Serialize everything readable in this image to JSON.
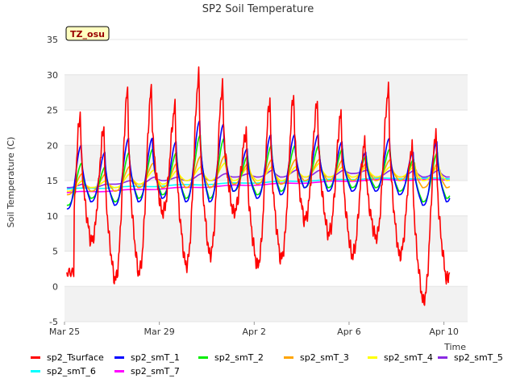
{
  "chart_data": {
    "type": "line",
    "title": "SP2 Soil Temperature",
    "ylabel": "Soil Temperature (C)",
    "xlabel": "Time",
    "badge": "TZ_osu",
    "ylim": [
      -5,
      35
    ],
    "yticks": [
      -5,
      0,
      5,
      10,
      15,
      20,
      25,
      30,
      35
    ],
    "xlim_days": [
      0,
      17.0
    ],
    "xticks": [
      {
        "label": "Mar 25",
        "day": 0
      },
      {
        "label": "Mar 29",
        "day": 4
      },
      {
        "label": "Apr 2",
        "day": 8
      },
      {
        "label": "Apr 6",
        "day": 12
      },
      {
        "label": "Apr 10",
        "day": 16
      }
    ],
    "grid": "horizontal-bands",
    "series": [
      {
        "name": "sp2_Tsurface",
        "color": "#ff0000",
        "daily_max": [
          24.5,
          22.5,
          28.0,
          28.0,
          25.5,
          30.0,
          28.5,
          22.0,
          26.5,
          27.0,
          26.0,
          24.5,
          20.5,
          28.0,
          20.0,
          22.0,
          26.5
        ],
        "daily_min": [
          0.2,
          6.5,
          1.0,
          2.0,
          10.5,
          3.0,
          4.5,
          10.5,
          3.0,
          4.0,
          9.5,
          7.5,
          4.5,
          7.0,
          4.5,
          -2.0,
          1.0
        ],
        "start": 2.0,
        "end": 10.5
      },
      {
        "name": "sp2_smT_1",
        "color": "#0000ff",
        "daily_max": [
          20.0,
          19.0,
          21.0,
          21.0,
          20.5,
          23.5,
          23.0,
          19.5,
          21.5,
          21.5,
          21.5,
          20.5,
          19.0,
          21.0,
          19.0,
          20.5,
          22.5
        ],
        "daily_min": [
          11.0,
          12.0,
          11.5,
          12.0,
          12.5,
          12.0,
          12.0,
          13.5,
          12.5,
          13.0,
          14.0,
          13.5,
          13.5,
          13.5,
          13.0,
          11.5,
          12.0
        ]
      },
      {
        "name": "sp2_smT_2",
        "color": "#00ee00",
        "daily_max": [
          17.5,
          17.0,
          19.0,
          19.5,
          19.0,
          21.5,
          21.0,
          18.5,
          20.0,
          20.0,
          20.0,
          19.5,
          18.5,
          19.5,
          18.0,
          19.0,
          21.0
        ],
        "daily_min": [
          11.5,
          12.5,
          12.0,
          12.5,
          13.0,
          12.5,
          12.5,
          13.5,
          13.0,
          13.5,
          14.0,
          14.0,
          14.0,
          14.0,
          13.5,
          12.0,
          12.5
        ]
      },
      {
        "name": "sp2_smT_3",
        "color": "#ffa500",
        "daily_max": [
          16.0,
          16.0,
          17.0,
          17.5,
          17.5,
          18.5,
          18.5,
          17.5,
          18.0,
          18.0,
          18.0,
          18.0,
          17.5,
          18.0,
          17.5,
          17.5,
          18.5
        ],
        "daily_min": [
          13.0,
          13.5,
          13.5,
          14.0,
          14.0,
          14.0,
          14.0,
          14.5,
          14.5,
          14.5,
          15.0,
          15.0,
          15.0,
          15.0,
          15.0,
          14.0,
          14.0
        ]
      },
      {
        "name": "sp2_smT_4",
        "color": "#ffff00",
        "daily_max": [
          15.0,
          15.0,
          16.0,
          16.5,
          16.5,
          17.0,
          17.5,
          17.0,
          17.0,
          17.0,
          17.5,
          17.0,
          17.0,
          17.0,
          17.0,
          17.0,
          17.5
        ],
        "daily_min": [
          13.5,
          14.0,
          14.0,
          14.5,
          14.5,
          15.0,
          15.0,
          15.0,
          15.0,
          15.0,
          15.5,
          15.5,
          15.5,
          15.5,
          15.5,
          15.0,
          15.0
        ]
      },
      {
        "name": "sp2_smT_5",
        "color": "#8a2be2",
        "daily_max": [
          14.5,
          14.5,
          15.0,
          15.5,
          15.5,
          16.0,
          16.0,
          16.0,
          16.5,
          16.5,
          16.5,
          16.5,
          16.5,
          16.5,
          16.5,
          16.5,
          16.5
        ],
        "daily_min": [
          14.0,
          14.0,
          14.5,
          14.5,
          15.0,
          15.0,
          15.0,
          15.5,
          15.5,
          15.5,
          15.5,
          15.5,
          16.0,
          15.5,
          15.5,
          15.5,
          15.5
        ]
      },
      {
        "name": "sp2_smT_6",
        "color": "#00ffff",
        "start_value": 13.8,
        "end_value": 15.3
      },
      {
        "name": "sp2_smT_7",
        "color": "#ff00ff",
        "start_value": 13.3,
        "end_value": 15.1
      }
    ]
  }
}
